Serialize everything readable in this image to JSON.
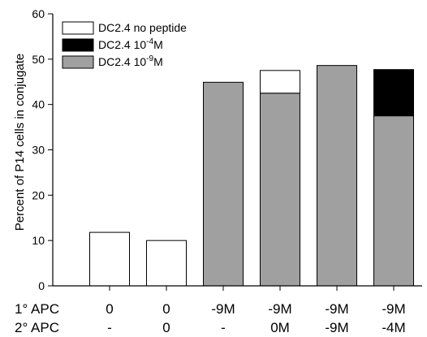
{
  "chart_data": {
    "type": "bar",
    "stacked": true,
    "ylabel": "Percent of P14 cells in conjugate",
    "ylim": [
      0,
      60
    ],
    "yticks": [
      0,
      10,
      20,
      30,
      40,
      50,
      60
    ],
    "grid": false,
    "legend_position": "top-left",
    "x_row_labels": [
      "1° APC",
      "2° APC"
    ],
    "categories": [
      {
        "primary": "0",
        "secondary": "-"
      },
      {
        "primary": "0",
        "secondary": "0"
      },
      {
        "primary": "-9M",
        "secondary": "-"
      },
      {
        "primary": "-9M",
        "secondary": "0M"
      },
      {
        "primary": "-9M",
        "secondary": "-9M"
      },
      {
        "primary": "-9M",
        "secondary": "-4M"
      }
    ],
    "series": [
      {
        "name": "DC2.4 no peptide",
        "name_base": "DC2.4 no peptide",
        "name_sup": "",
        "name_suffix": "",
        "color": "#ffffff",
        "values": [
          11.8,
          10.0,
          0,
          5.0,
          0,
          0
        ]
      },
      {
        "name": "DC2.4 10-4M",
        "name_base": "DC2.4 10",
        "name_sup": "-4",
        "name_suffix": "M",
        "color": "#000000",
        "values": [
          0,
          0,
          0,
          0,
          0,
          10.2
        ]
      },
      {
        "name": "DC2.4 10-9M",
        "name_base": "DC2.4 10",
        "name_sup": "-9",
        "name_suffix": "M",
        "color": "#a0a0a0",
        "values": [
          0,
          0,
          44.9,
          42.5,
          48.6,
          37.5
        ]
      }
    ],
    "stack_order": [
      2,
      0,
      1
    ]
  }
}
